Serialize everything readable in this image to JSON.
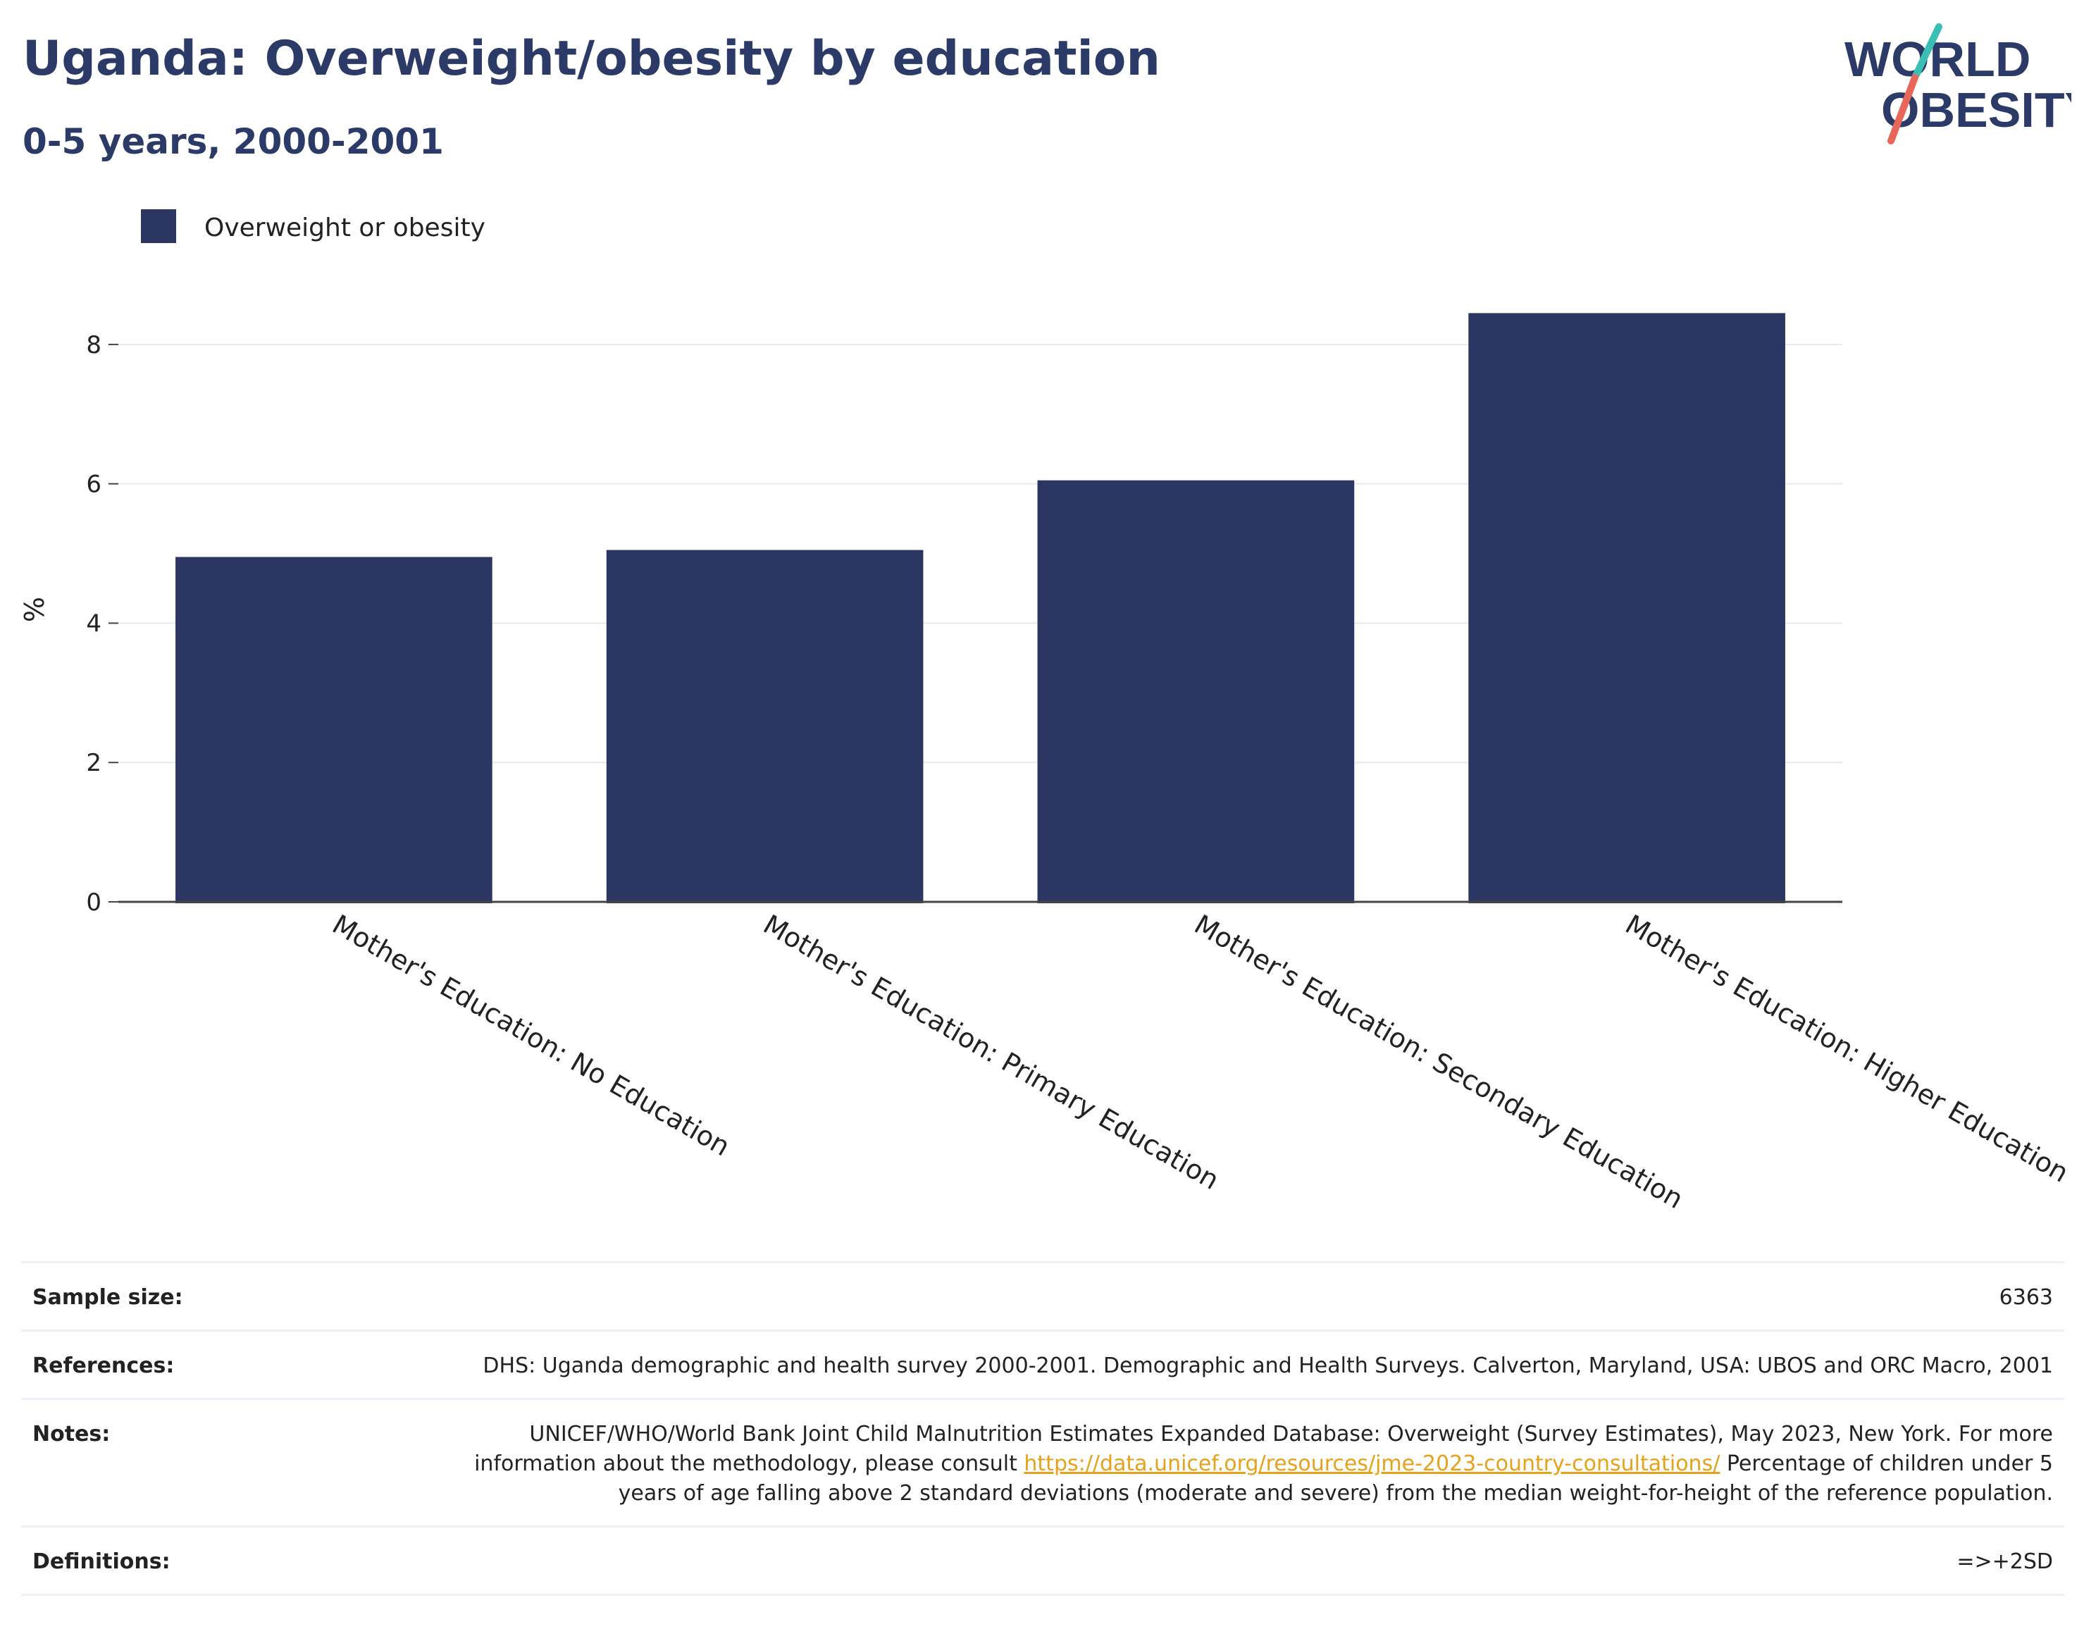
{
  "header": {
    "title": "Uganda: Overweight/obesity by education",
    "subtitle": "0-5 years, 2000-2001"
  },
  "logo": {
    "line1": "WORLD",
    "line2": "OBESITY",
    "colors": {
      "text": "#2b3a67",
      "slash_top": "#3bbfb5",
      "slash_bottom": "#e8675a"
    }
  },
  "chart_data": {
    "type": "bar",
    "title": "",
    "xlabel": "",
    "ylabel": "%",
    "ylim": [
      0,
      9
    ],
    "yticks": [
      0,
      2,
      4,
      6,
      8
    ],
    "categories": [
      "Mother's Education: No Education",
      "Mother's Education: Primary Education",
      "Mother's Education: Secondary Education",
      "Mother's Education: Higher Education"
    ],
    "series": [
      {
        "name": "Overweight or obesity",
        "color": "#2b3762",
        "values": [
          4.95,
          5.05,
          6.05,
          8.45
        ]
      }
    ],
    "legend": "top-left",
    "grid": true
  },
  "info": {
    "sample_size": {
      "label": "Sample size:",
      "value": "6363"
    },
    "references": {
      "label": "References:",
      "value": "DHS: Uganda demographic and health survey 2000-2001. Demographic and Health Surveys. Calverton, Maryland, USA: UBOS and ORC Macro, 2001"
    },
    "notes": {
      "label": "Notes:",
      "text_before": "UNICEF/WHO/World Bank Joint Child Malnutrition Estimates Expanded Database: Overweight (Survey Estimates), May 2023, New York. For more information about the methodology, please consult",
      "link": "https://data.unicef.org/resources/jme-2023-country-consultations/",
      "text_after": "Percentage of children under 5 years of age falling above 2 standard deviations (moderate and severe) from the median weight-for-height of the reference population."
    },
    "definitions": {
      "label": "Definitions:",
      "value": "=>+2SD"
    }
  }
}
